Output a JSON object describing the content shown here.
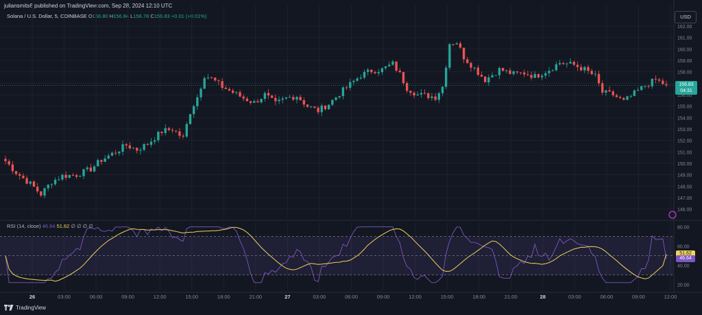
{
  "published_note": "juliansmits6 published on TradingView.com, Sep 28, 2024 12:10 UTC",
  "legend": {
    "symbol": "Solana / U.S. Dollar, 5, COINBASE",
    "o_label": "O",
    "o_value": "156.80",
    "h_label": "H",
    "h_value": "156.84",
    "l_label": "L",
    "l_value": "156.78",
    "c_label": "C",
    "c_value": "156.83",
    "change": "+0.01 (+0.01%)"
  },
  "currency_button": "USD",
  "last_price": {
    "value": "156.83",
    "countdown": "04:31"
  },
  "rsi_legend": {
    "label": "RSI (14, close)",
    "rsi_value": "46.64",
    "ma_value": "51.62",
    "extras": "∅ ∅ ∅ ∅"
  },
  "footer_brand": "TradingView",
  "colors": {
    "background": "#131722",
    "up": "#26a69a",
    "down": "#ef5350",
    "rsi_line": "#7e57c2",
    "rsi_ma": "#f0d45a",
    "band": "#7e57c2"
  },
  "chart_data": [
    {
      "type": "candlestick",
      "title": "Solana / U.S. Dollar, 5, COINBASE",
      "x_tick_labels": [
        "26",
        "03:00",
        "06:00",
        "09:00",
        "12:00",
        "15:00",
        "18:00",
        "21:00",
        "27",
        "03:00",
        "06:00",
        "09:00",
        "12:00",
        "15:00",
        "18:00",
        "21:00",
        "28",
        "03:00",
        "06:00",
        "09:00",
        "12:00"
      ],
      "y_tick_labels": [
        "162.00",
        "161.00",
        "160.00",
        "159.00",
        "158.00",
        "157.00",
        "156.00",
        "155.00",
        "154.00",
        "153.00",
        "152.00",
        "151.00",
        "150.00",
        "149.00",
        "148.00",
        "147.00",
        "146.00"
      ],
      "ylim": [
        145.2,
        162.6
      ],
      "grid": true,
      "close_anchors": [
        {
          "t": 0,
          "v": 150.2
        },
        {
          "t": 3,
          "v": 149.2
        },
        {
          "t": 7,
          "v": 148.2
        },
        {
          "t": 10,
          "v": 147.3
        },
        {
          "t": 13,
          "v": 148.4
        },
        {
          "t": 16,
          "v": 148.9
        },
        {
          "t": 20,
          "v": 149.0
        },
        {
          "t": 24,
          "v": 149.5
        },
        {
          "t": 27,
          "v": 150.3
        },
        {
          "t": 31,
          "v": 151.0
        },
        {
          "t": 34,
          "v": 151.6
        },
        {
          "t": 37,
          "v": 151.2
        },
        {
          "t": 40,
          "v": 151.7
        },
        {
          "t": 44,
          "v": 152.8
        },
        {
          "t": 47,
          "v": 153.0
        },
        {
          "t": 50,
          "v": 152.2
        },
        {
          "t": 52,
          "v": 154.5
        },
        {
          "t": 54,
          "v": 155.8
        },
        {
          "t": 56,
          "v": 157.7
        },
        {
          "t": 58,
          "v": 157.4
        },
        {
          "t": 61,
          "v": 156.7
        },
        {
          "t": 64,
          "v": 156.2
        },
        {
          "t": 67,
          "v": 155.7
        },
        {
          "t": 70,
          "v": 155.3
        },
        {
          "t": 73,
          "v": 156.0
        },
        {
          "t": 76,
          "v": 155.2
        },
        {
          "t": 79,
          "v": 155.7
        },
        {
          "t": 82,
          "v": 155.9
        },
        {
          "t": 85,
          "v": 155.0
        },
        {
          "t": 88,
          "v": 154.6
        },
        {
          "t": 91,
          "v": 155.2
        },
        {
          "t": 94,
          "v": 156.1
        },
        {
          "t": 97,
          "v": 156.9
        },
        {
          "t": 100,
          "v": 157.7
        },
        {
          "t": 103,
          "v": 158.1
        },
        {
          "t": 106,
          "v": 158.2
        },
        {
          "t": 109,
          "v": 158.7
        },
        {
          "t": 111,
          "v": 157.8
        },
        {
          "t": 113,
          "v": 156.6
        },
        {
          "t": 116,
          "v": 156.0
        },
        {
          "t": 119,
          "v": 155.9
        },
        {
          "t": 121,
          "v": 155.8
        },
        {
          "t": 123,
          "v": 156.7
        },
        {
          "t": 125,
          "v": 160.5
        },
        {
          "t": 127,
          "v": 160.6
        },
        {
          "t": 129,
          "v": 159.3
        },
        {
          "t": 132,
          "v": 158.3
        },
        {
          "t": 135,
          "v": 157.3
        },
        {
          "t": 139,
          "v": 158.2
        },
        {
          "t": 143,
          "v": 157.8
        },
        {
          "t": 146,
          "v": 157.9
        },
        {
          "t": 149,
          "v": 157.6
        },
        {
          "t": 153,
          "v": 158.2
        },
        {
          "t": 156,
          "v": 158.8
        },
        {
          "t": 160,
          "v": 158.6
        },
        {
          "t": 163,
          "v": 158.2
        },
        {
          "t": 166,
          "v": 157.6
        },
        {
          "t": 168,
          "v": 156.2
        },
        {
          "t": 171,
          "v": 156.0
        },
        {
          "t": 174,
          "v": 155.4
        },
        {
          "t": 177,
          "v": 156.1
        },
        {
          "t": 180,
          "v": 156.8
        },
        {
          "t": 183,
          "v": 157.3
        },
        {
          "t": 186,
          "v": 156.83
        }
      ],
      "last_price": 156.83
    },
    {
      "type": "line",
      "title": "RSI (14, close)",
      "y_tick_labels": [
        "80.00",
        "60.00",
        "40.00",
        "20.00"
      ],
      "ylim": [
        14,
        84
      ],
      "band_upper": 70,
      "band_lower": 30,
      "mid_line": 50,
      "series": [
        {
          "name": "RSI",
          "last": 46.64
        },
        {
          "name": "RSI-based MA",
          "last": 51.62
        }
      ]
    }
  ]
}
